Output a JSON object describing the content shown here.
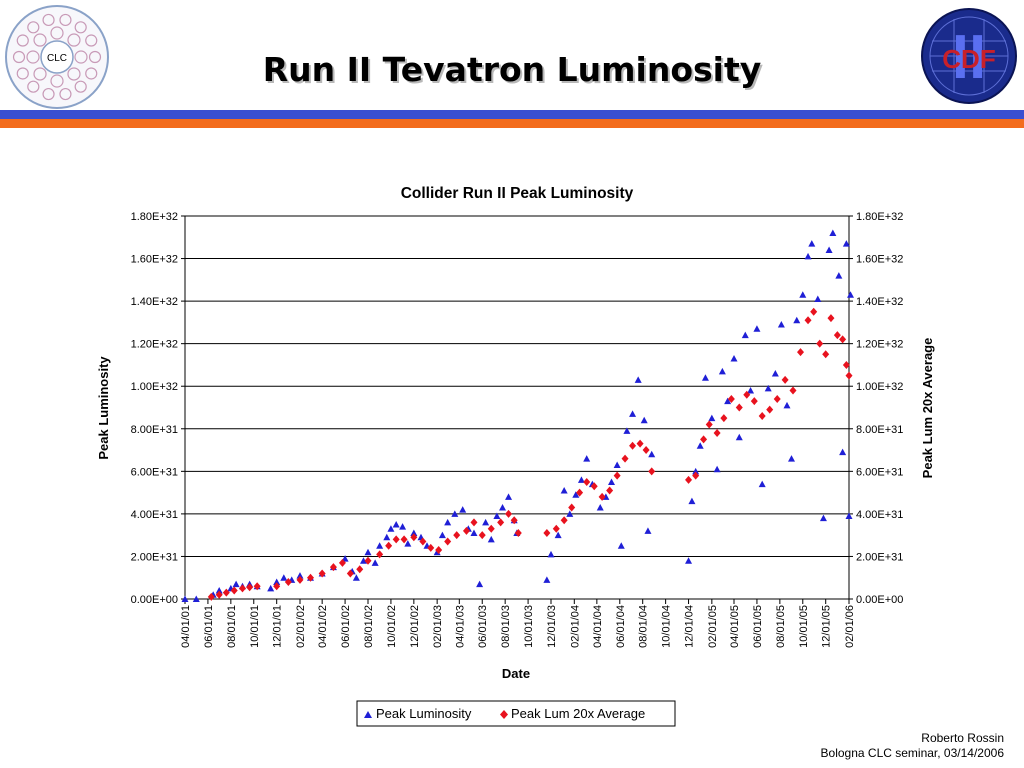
{
  "slide": {
    "title": "Run II Tevatron Luminosity",
    "left_logo_text": "CLC",
    "right_logo_text": "CDF",
    "right_logo_numeral": "II",
    "footer_author": "Roberto Rossin",
    "footer_event": "Bologna CLC seminar, 03/14/2006"
  },
  "colors": {
    "rule_blue": "#3a4fd0",
    "rule_orange": "#f36c1d",
    "series_peak": "#1f1fd6",
    "series_avg": "#e8121e"
  },
  "chart_data": {
    "type": "scatter",
    "title": "Collider Run II Peak Luminosity",
    "xlabel": "Date",
    "ylabel": "Peak Luminosity",
    "ylabel_right": "Peak Lum 20x Average",
    "ylim": [
      0,
      1.8e+32
    ],
    "yticks": [
      "0.00E+00",
      "2.00E+31",
      "4.00E+31",
      "6.00E+31",
      "8.00E+31",
      "1.00E+32",
      "1.20E+32",
      "1.40E+32",
      "1.60E+32",
      "1.80E+32"
    ],
    "xlim": [
      "2001-04-01",
      "2006-02-01"
    ],
    "xticks": [
      "04/01/01",
      "06/01/01",
      "08/01/01",
      "10/01/01",
      "12/01/01",
      "02/01/02",
      "04/01/02",
      "06/01/02",
      "08/01/02",
      "10/01/02",
      "12/01/02",
      "02/01/03",
      "04/01/03",
      "06/01/03",
      "08/01/03",
      "10/01/03",
      "12/01/03",
      "02/01/04",
      "04/01/04",
      "06/01/04",
      "08/01/04",
      "10/01/04",
      "12/01/04",
      "02/01/05",
      "04/01/05",
      "06/01/05",
      "08/01/05",
      "10/01/05",
      "12/01/05",
      "02/01/06"
    ],
    "grid": "horizontal",
    "legend_position": "bottom",
    "series": [
      {
        "name": "Peak Luminosity",
        "marker": "triangle",
        "color": "#1f1fd6",
        "points": [
          [
            "2001-04-01",
            0.0
          ],
          [
            "2001-05-01",
            0.0
          ],
          [
            "2001-06-15",
            2e+30
          ],
          [
            "2001-07-01",
            4e+30
          ],
          [
            "2001-08-01",
            5e+30
          ],
          [
            "2001-08-15",
            7e+30
          ],
          [
            "2001-09-01",
            6e+30
          ],
          [
            "2001-09-20",
            7e+30
          ],
          [
            "2001-10-10",
            6e+30
          ],
          [
            "2001-11-15",
            5e+30
          ],
          [
            "2001-12-01",
            8e+30
          ],
          [
            "2001-12-20",
            1e+31
          ],
          [
            "2002-01-10",
            9e+30
          ],
          [
            "2002-02-01",
            1.1e+31
          ],
          [
            "2002-03-01",
            1e+31
          ],
          [
            "2002-04-01",
            1.2e+31
          ],
          [
            "2002-05-01",
            1.5e+31
          ],
          [
            "2002-06-01",
            1.9e+31
          ],
          [
            "2002-06-20",
            1.3e+31
          ],
          [
            "2002-07-01",
            1e+31
          ],
          [
            "2002-07-20",
            1.8e+31
          ],
          [
            "2002-08-01",
            2.2e+31
          ],
          [
            "2002-08-20",
            1.7e+31
          ],
          [
            "2002-09-01",
            2.5e+31
          ],
          [
            "2002-09-20",
            2.9e+31
          ],
          [
            "2002-10-01",
            3.3e+31
          ],
          [
            "2002-10-15",
            3.5e+31
          ],
          [
            "2002-11-01",
            3.4e+31
          ],
          [
            "2002-11-15",
            2.6e+31
          ],
          [
            "2002-12-01",
            3.1e+31
          ],
          [
            "2002-12-20",
            2.9e+31
          ],
          [
            "2003-01-05",
            2.5e+31
          ],
          [
            "2003-02-01",
            2.2e+31
          ],
          [
            "2003-02-15",
            3e+31
          ],
          [
            "2003-03-01",
            3.6e+31
          ],
          [
            "2003-03-20",
            4e+31
          ],
          [
            "2003-04-10",
            4.2e+31
          ],
          [
            "2003-04-25",
            3.3e+31
          ],
          [
            "2003-05-10",
            3.1e+31
          ],
          [
            "2003-05-25",
            7e+30
          ],
          [
            "2003-06-10",
            3.6e+31
          ],
          [
            "2003-06-25",
            2.8e+31
          ],
          [
            "2003-07-10",
            3.9e+31
          ],
          [
            "2003-07-25",
            4.3e+31
          ],
          [
            "2003-08-10",
            4.8e+31
          ],
          [
            "2003-08-25",
            3.7e+31
          ],
          [
            "2003-09-01",
            3.1e+31
          ],
          [
            "2003-11-20",
            9e+30
          ],
          [
            "2003-12-01",
            2.1e+31
          ],
          [
            "2003-12-20",
            3e+31
          ],
          [
            "2004-01-05",
            5.1e+31
          ],
          [
            "2004-01-20",
            4e+31
          ],
          [
            "2004-02-05",
            4.9e+31
          ],
          [
            "2004-02-20",
            5.6e+31
          ],
          [
            "2004-03-05",
            6.6e+31
          ],
          [
            "2004-03-20",
            5.4e+31
          ],
          [
            "2004-04-10",
            4.3e+31
          ],
          [
            "2004-04-25",
            4.8e+31
          ],
          [
            "2004-05-10",
            5.5e+31
          ],
          [
            "2004-05-25",
            6.3e+31
          ],
          [
            "2004-06-05",
            2.5e+31
          ],
          [
            "2004-06-20",
            7.9e+31
          ],
          [
            "2004-07-05",
            8.7e+31
          ],
          [
            "2004-07-20",
            1.03e+32
          ],
          [
            "2004-08-05",
            8.4e+31
          ],
          [
            "2004-08-15",
            3.2e+31
          ],
          [
            "2004-08-25",
            6.8e+31
          ],
          [
            "2004-12-01",
            1.8e+31
          ],
          [
            "2004-12-10",
            4.6e+31
          ],
          [
            "2004-12-20",
            6e+31
          ],
          [
            "2005-01-01",
            7.2e+31
          ],
          [
            "2005-01-15",
            1.04e+32
          ],
          [
            "2005-02-01",
            8.5e+31
          ],
          [
            "2005-02-15",
            6.1e+31
          ],
          [
            "2005-03-01",
            1.07e+32
          ],
          [
            "2005-03-15",
            9.3e+31
          ],
          [
            "2005-04-01",
            1.13e+32
          ],
          [
            "2005-04-15",
            7.6e+31
          ],
          [
            "2005-05-01",
            1.24e+32
          ],
          [
            "2005-05-15",
            9.8e+31
          ],
          [
            "2005-06-01",
            1.27e+32
          ],
          [
            "2005-06-15",
            5.4e+31
          ],
          [
            "2005-07-01",
            9.9e+31
          ],
          [
            "2005-07-20",
            1.06e+32
          ],
          [
            "2005-08-05",
            1.29e+32
          ],
          [
            "2005-08-20",
            9.1e+31
          ],
          [
            "2005-09-01",
            6.6e+31
          ],
          [
            "2005-09-15",
            1.31e+32
          ],
          [
            "2005-10-01",
            1.43e+32
          ],
          [
            "2005-10-15",
            1.61e+32
          ],
          [
            "2005-10-25",
            1.67e+32
          ],
          [
            "2005-11-10",
            1.41e+32
          ],
          [
            "2005-11-25",
            3.8e+31
          ],
          [
            "2005-12-10",
            1.64e+32
          ],
          [
            "2005-12-20",
            1.72e+32
          ],
          [
            "2006-01-05",
            1.52e+32
          ],
          [
            "2006-01-15",
            6.9e+31
          ],
          [
            "2006-01-25",
            1.67e+32
          ],
          [
            "2006-02-01",
            3.9e+31
          ],
          [
            "2006-02-05",
            1.43e+32
          ]
        ]
      },
      {
        "name": "Peak Lum 20x Average",
        "marker": "diamond",
        "color": "#e8121e",
        "points": [
          [
            "2001-06-10",
            1e+30
          ],
          [
            "2001-07-01",
            2e+30
          ],
          [
            "2001-07-20",
            3e+30
          ],
          [
            "2001-08-10",
            4e+30
          ],
          [
            "2001-09-01",
            5e+30
          ],
          [
            "2001-09-20",
            5.5e+30
          ],
          [
            "2001-10-10",
            6e+30
          ],
          [
            "2001-12-01",
            6e+30
          ],
          [
            "2002-01-01",
            8e+30
          ],
          [
            "2002-02-01",
            9e+30
          ],
          [
            "2002-03-01",
            1e+31
          ],
          [
            "2002-04-01",
            1.2e+31
          ],
          [
            "2002-05-01",
            1.5e+31
          ],
          [
            "2002-05-25",
            1.7e+31
          ],
          [
            "2002-06-15",
            1.2e+31
          ],
          [
            "2002-07-10",
            1.4e+31
          ],
          [
            "2002-08-01",
            1.8e+31
          ],
          [
            "2002-09-01",
            2.1e+31
          ],
          [
            "2002-09-25",
            2.5e+31
          ],
          [
            "2002-10-15",
            2.8e+31
          ],
          [
            "2002-11-05",
            2.8e+31
          ],
          [
            "2002-12-01",
            2.9e+31
          ],
          [
            "2002-12-25",
            2.7e+31
          ],
          [
            "2003-01-15",
            2.4e+31
          ],
          [
            "2003-02-05",
            2.3e+31
          ],
          [
            "2003-03-01",
            2.7e+31
          ],
          [
            "2003-03-25",
            3e+31
          ],
          [
            "2003-04-20",
            3.2e+31
          ],
          [
            "2003-05-10",
            3.6e+31
          ],
          [
            "2003-06-01",
            3e+31
          ],
          [
            "2003-06-25",
            3.3e+31
          ],
          [
            "2003-07-20",
            3.6e+31
          ],
          [
            "2003-08-10",
            4e+31
          ],
          [
            "2003-08-25",
            3.7e+31
          ],
          [
            "2003-09-05",
            3.1e+31
          ],
          [
            "2003-11-20",
            3.1e+31
          ],
          [
            "2003-12-15",
            3.3e+31
          ],
          [
            "2004-01-05",
            3.7e+31
          ],
          [
            "2004-01-25",
            4.3e+31
          ],
          [
            "2004-02-15",
            5e+31
          ],
          [
            "2004-03-05",
            5.5e+31
          ],
          [
            "2004-03-25",
            5.3e+31
          ],
          [
            "2004-04-15",
            4.8e+31
          ],
          [
            "2004-05-05",
            5.1e+31
          ],
          [
            "2004-05-25",
            5.8e+31
          ],
          [
            "2004-06-15",
            6.6e+31
          ],
          [
            "2004-07-05",
            7.2e+31
          ],
          [
            "2004-07-25",
            7.3e+31
          ],
          [
            "2004-08-10",
            7e+31
          ],
          [
            "2004-08-25",
            6e+31
          ],
          [
            "2004-12-01",
            5.6e+31
          ],
          [
            "2004-12-20",
            5.8e+31
          ],
          [
            "2005-01-10",
            7.5e+31
          ],
          [
            "2005-01-25",
            8.2e+31
          ],
          [
            "2005-02-15",
            7.8e+31
          ],
          [
            "2005-03-05",
            8.5e+31
          ],
          [
            "2005-03-25",
            9.4e+31
          ],
          [
            "2005-04-15",
            9e+31
          ],
          [
            "2005-05-05",
            9.6e+31
          ],
          [
            "2005-05-25",
            9.3e+31
          ],
          [
            "2005-06-15",
            8.6e+31
          ],
          [
            "2005-07-05",
            8.9e+31
          ],
          [
            "2005-07-25",
            9.4e+31
          ],
          [
            "2005-08-15",
            1.03e+32
          ],
          [
            "2005-09-05",
            9.8e+31
          ],
          [
            "2005-09-25",
            1.16e+32
          ],
          [
            "2005-10-15",
            1.31e+32
          ],
          [
            "2005-10-30",
            1.35e+32
          ],
          [
            "2005-11-15",
            1.2e+32
          ],
          [
            "2005-12-01",
            1.15e+32
          ],
          [
            "2005-12-15",
            1.32e+32
          ],
          [
            "2006-01-01",
            1.24e+32
          ],
          [
            "2006-01-15",
            1.22e+32
          ],
          [
            "2006-01-25",
            1.1e+32
          ],
          [
            "2006-02-01",
            1.05e+32
          ]
        ]
      }
    ]
  }
}
